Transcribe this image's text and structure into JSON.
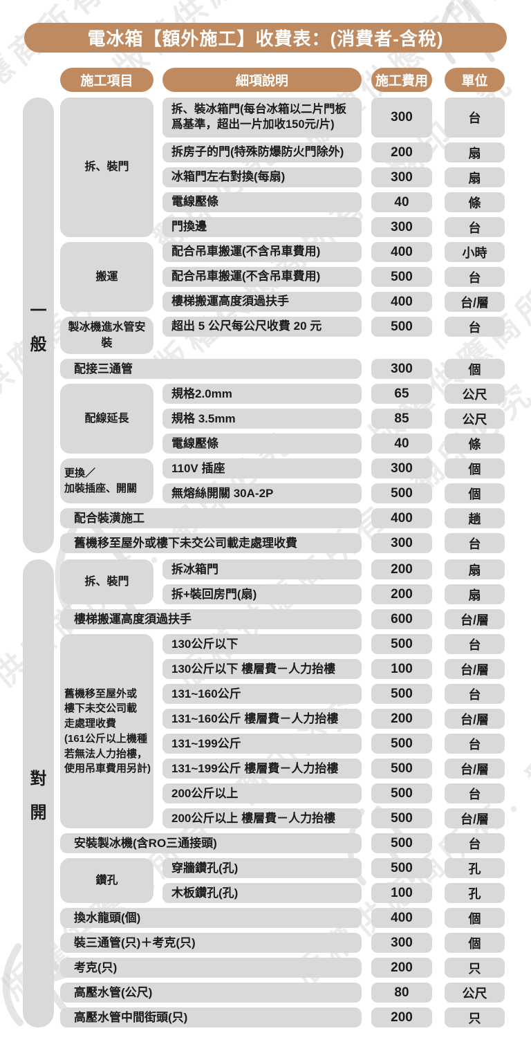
{
  "title": "電冰箱【額外施工】收費表：(消費者-含稅)",
  "watermark_text": "版權供應商所有．翻印必究",
  "colors": {
    "brown": "#BF8A5F",
    "cell_gray": "#D9D9D9",
    "text": "#1B1B1B",
    "title_text": "#FFFFFF",
    "watermark": "#C6C6C6"
  },
  "columns": {
    "item": "施工項目",
    "detail": "細項說明",
    "fee": "施工費用",
    "unit": "單位"
  },
  "sections": [
    {
      "label": "一般",
      "groups": [
        {
          "type": "grouped",
          "item": "拆、裝門",
          "rows": [
            {
              "detail": "拆、裝冰箱門(每台冰箱以二片門板爲基準，超出一片加收150元/片)",
              "fee": "300",
              "unit": "台",
              "tall": true
            },
            {
              "detail": "拆房子的門(特殊防爆防火門除外)",
              "fee": "200",
              "unit": "扇"
            },
            {
              "detail": "冰箱門左右對換(每扇)",
              "fee": "300",
              "unit": "扇"
            },
            {
              "detail": "電線壓條",
              "fee": "40",
              "unit": "條"
            },
            {
              "detail": "門換邊",
              "fee": "300",
              "unit": "台"
            }
          ]
        },
        {
          "type": "grouped",
          "item": "搬運",
          "rows": [
            {
              "detail": "配合吊車搬運(不含吊車費用)",
              "fee": "400",
              "unit": "小時"
            },
            {
              "detail": "配合吊車搬運(不含吊車費用)",
              "fee": "500",
              "unit": "台"
            },
            {
              "detail": "樓梯搬運高度須過扶手",
              "fee": "400",
              "unit": "台/層"
            }
          ]
        },
        {
          "type": "grouped",
          "item": "製冰機進水管安裝",
          "rows": [
            {
              "detail": "超出 5 公尺每公尺收費 20 元",
              "fee": "500",
              "unit": "台"
            }
          ]
        },
        {
          "type": "wide",
          "detail": "配接三通管",
          "fee": "300",
          "unit": "個"
        },
        {
          "type": "grouped",
          "item": "配線延長",
          "rows": [
            {
              "detail": "規格2.0mm",
              "fee": "65",
              "unit": "公尺"
            },
            {
              "detail": "規格 3.5mm",
              "fee": "85",
              "unit": "公尺"
            },
            {
              "detail": "電線壓條",
              "fee": "40",
              "unit": "條"
            }
          ]
        },
        {
          "type": "grouped",
          "item": "更換／\n加裝插座、開關",
          "item_align": "left",
          "rows": [
            {
              "detail": "110V 插座",
              "fee": "300",
              "unit": "個"
            },
            {
              "detail": "無熔絲開關 30A-2P",
              "fee": "500",
              "unit": "個"
            }
          ]
        },
        {
          "type": "wide",
          "detail": "配合裝潢施工",
          "fee": "400",
          "unit": "趟"
        },
        {
          "type": "wide",
          "detail": "舊機移至屋外或樓下未交公司載走處理收費",
          "fee": "300",
          "unit": "台"
        }
      ]
    },
    {
      "label": "對開",
      "groups": [
        {
          "type": "grouped",
          "item": "拆、裝門",
          "rows": [
            {
              "detail": "拆冰箱門",
              "fee": "200",
              "unit": "扇"
            },
            {
              "detail": "拆+裝回房門(扇)",
              "fee": "200",
              "unit": "扇"
            }
          ]
        },
        {
          "type": "wide",
          "detail": "樓梯搬運高度須過扶手",
          "fee": "600",
          "unit": "台/層"
        },
        {
          "type": "grouped",
          "item": "舊機移至屋外或\n樓下未交公司載\n走處理收費\n(161公斤以上機種\n若無法人力抬樓，\n使用吊車費用另計)",
          "item_align": "left",
          "rows": [
            {
              "detail": "130公斤以下",
              "fee": "500",
              "unit": "台"
            },
            {
              "detail": "130公斤以下 樓層費－人力抬樓",
              "fee": "100",
              "unit": "台/層"
            },
            {
              "detail": "131~160公斤",
              "fee": "500",
              "unit": "台"
            },
            {
              "detail": "131~160公斤 樓層費－人力抬樓",
              "fee": "200",
              "unit": "台/層"
            },
            {
              "detail": "131~199公斤",
              "fee": "500",
              "unit": "台"
            },
            {
              "detail": "131~199公斤 樓層費－人力抬樓",
              "fee": "500",
              "unit": "台/層"
            },
            {
              "detail": "200公斤以上",
              "fee": "500",
              "unit": "台"
            },
            {
              "detail": "200公斤以上 樓層費－人力抬樓",
              "fee": "500",
              "unit": "台/層"
            }
          ]
        },
        {
          "type": "wide",
          "detail": "安裝製冰機(含RO三通接頭)",
          "fee": "500",
          "unit": "台"
        },
        {
          "type": "grouped",
          "item": "鑽孔",
          "rows": [
            {
              "detail": "穿牆鑽孔(孔)",
              "fee": "500",
              "unit": "孔"
            },
            {
              "detail": "木板鑽孔(孔)",
              "fee": "100",
              "unit": "孔"
            }
          ]
        },
        {
          "type": "wide",
          "detail": "換水龍頭(個)",
          "fee": "400",
          "unit": "個"
        },
        {
          "type": "wide",
          "detail": "裝三通管(只)＋考克(只)",
          "fee": "300",
          "unit": "個"
        },
        {
          "type": "wide",
          "detail": "考克(只)",
          "fee": "200",
          "unit": "只"
        },
        {
          "type": "wide",
          "detail": "高壓水管(公尺)",
          "fee": "80",
          "unit": "公尺"
        },
        {
          "type": "wide",
          "detail": "高壓水管中間街頭(只)",
          "fee": "200",
          "unit": "只"
        }
      ]
    }
  ]
}
